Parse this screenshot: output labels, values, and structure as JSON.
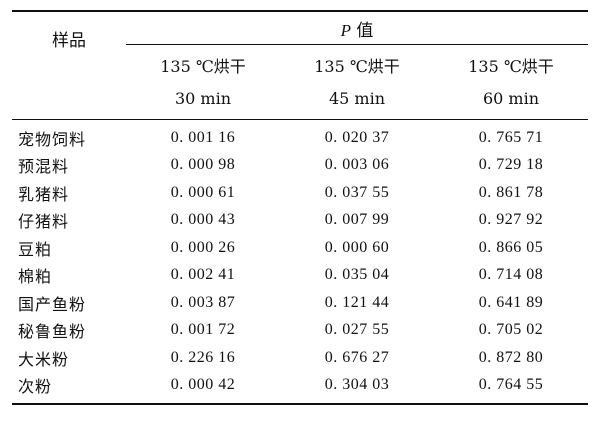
{
  "table": {
    "p_label": "P",
    "p_suffix": " 值",
    "sample_header": "样品",
    "conditions": [
      {
        "line1": "135 ℃烘干",
        "line2": "30 min"
      },
      {
        "line1": "135 ℃烘干",
        "line2": "45 min"
      },
      {
        "line1": "135 ℃烘干",
        "line2": "60 min"
      }
    ],
    "rows": [
      {
        "name": "宠物饲料",
        "v30": "0. 001 16",
        "v45": "0. 020 37",
        "v60": "0. 765 71"
      },
      {
        "name": "预混料",
        "v30": "0. 000 98",
        "v45": "0. 003 06",
        "v60": "0. 729 18"
      },
      {
        "name": "乳猪料",
        "v30": "0. 000 61",
        "v45": "0. 037 55",
        "v60": "0. 861 78"
      },
      {
        "name": "仔猪料",
        "v30": "0. 000 43",
        "v45": "0. 007 99",
        "v60": "0. 927 92"
      },
      {
        "name": "豆粕",
        "v30": "0. 000 26",
        "v45": "0. 000 60",
        "v60": "0. 866 05"
      },
      {
        "name": "棉粕",
        "v30": "0. 002 41",
        "v45": "0. 035 04",
        "v60": "0. 714 08"
      },
      {
        "name": "国产鱼粉",
        "v30": "0. 003 87",
        "v45": "0. 121 44",
        "v60": "0. 641 89"
      },
      {
        "name": "秘鲁鱼粉",
        "v30": "0. 001 72",
        "v45": "0. 027 55",
        "v60": "0. 705 02"
      },
      {
        "name": "大米粉",
        "v30": "0. 226 16",
        "v45": "0. 676 27",
        "v60": "0. 872 80"
      },
      {
        "name": "次粉",
        "v30": "0. 000 42",
        "v45": "0. 304 03",
        "v60": "0. 764 55"
      }
    ]
  }
}
